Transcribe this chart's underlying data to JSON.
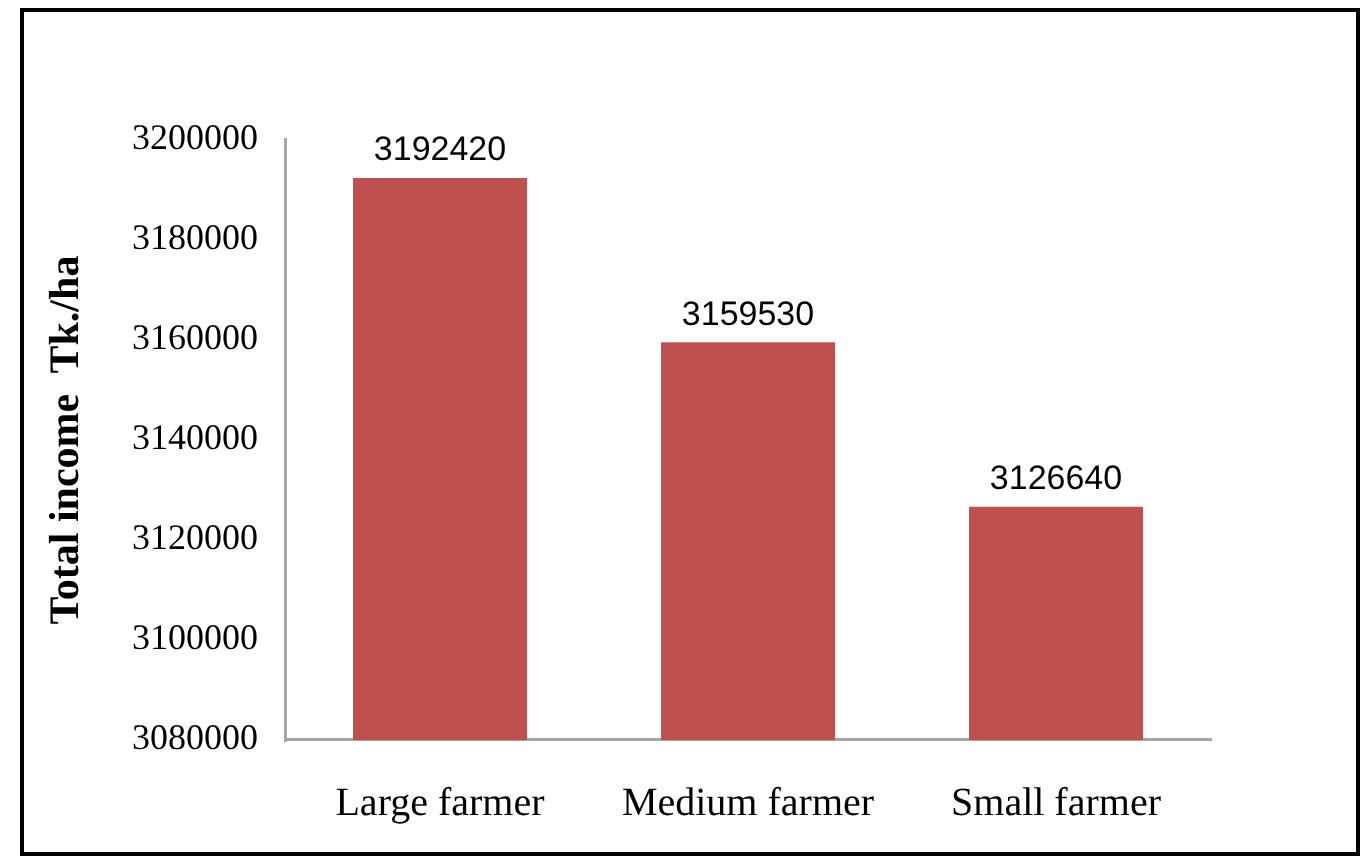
{
  "chart_data": {
    "type": "bar",
    "ylabel": "Total income  Tk./ha",
    "categories": [
      "Large farmer",
      "Medium farmer",
      "Small farmer"
    ],
    "values": [
      3192420,
      3159530,
      3126640
    ],
    "color": "#c0504d",
    "ylim": [
      3080000,
      3200000
    ],
    "yticks": [
      3080000,
      3100000,
      3120000,
      3140000,
      3160000,
      3180000,
      3200000
    ],
    "data_labels": true
  }
}
